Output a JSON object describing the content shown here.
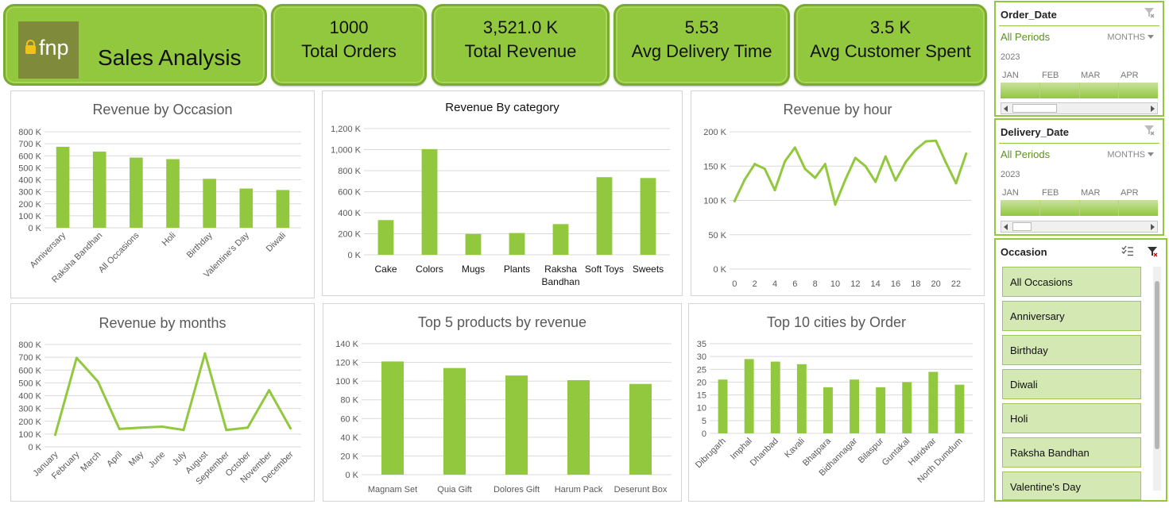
{
  "brand": {
    "logo_text": "fnp",
    "title": "Sales Analysis"
  },
  "kpis": [
    {
      "value": "1000",
      "label": "Total Orders"
    },
    {
      "value": "3,521.0 K",
      "label": "Total Revenue"
    },
    {
      "value": "5.53",
      "label": "Avg Delivery Time"
    },
    {
      "value": "3.5 K",
      "label": "Avg Customer Spent"
    }
  ],
  "colors": {
    "accent": "#92c83e",
    "bar": "#92c83e",
    "grid": "#d9d9d9",
    "axis_text": "#595959"
  },
  "charts": {
    "occasion": {
      "type": "bar",
      "title": "Revenue by Occasion",
      "categories": [
        "Anniversary",
        "Raksha Bandhan",
        "All Occasions",
        "Holi",
        "Birthday",
        "Valentine's Day",
        "Diwali"
      ],
      "values": [
        675,
        635,
        585,
        572,
        408,
        327,
        315
      ],
      "yticks": [
        "0 K",
        "100 K",
        "200 K",
        "300 K",
        "400 K",
        "500 K",
        "600 K",
        "700 K",
        "800 K"
      ],
      "ylim": [
        0,
        800
      ]
    },
    "category": {
      "type": "bar",
      "title": "Revenue By category",
      "categories": [
        "Cake",
        "Colors",
        "Mugs",
        "Plants",
        "Raksha Bandhan",
        "Soft Toys",
        "Sweets"
      ],
      "values": [
        330,
        1005,
        198,
        207,
        292,
        738,
        730
      ],
      "yticks": [
        "0 K",
        "200 K",
        "400 K",
        "600 K",
        "800 K",
        "1,000 K",
        "1,200 K"
      ],
      "ylim": [
        0,
        1200
      ]
    },
    "hour": {
      "type": "line",
      "title": "Revenue by hour",
      "x": [
        0,
        1,
        2,
        3,
        4,
        5,
        6,
        7,
        8,
        9,
        10,
        11,
        12,
        13,
        14,
        15,
        16,
        17,
        18,
        19,
        20,
        21,
        22,
        23
      ],
      "values": [
        99,
        130,
        153,
        146,
        115,
        157,
        177,
        146,
        133,
        153,
        94,
        130,
        162,
        150,
        127,
        164,
        129,
        156,
        174,
        186,
        187,
        155,
        125,
        168
      ],
      "xticks": [
        "0",
        "2",
        "4",
        "6",
        "8",
        "10",
        "12",
        "14",
        "16",
        "18",
        "20",
        "22"
      ],
      "yticks": [
        "0 K",
        "50 K",
        "100 K",
        "150 K",
        "200 K"
      ],
      "ylim": [
        0,
        200
      ]
    },
    "months": {
      "type": "line",
      "title": "Revenue by months",
      "categories": [
        "January",
        "February",
        "March",
        "April",
        "May",
        "June",
        "July",
        "August",
        "September",
        "October",
        "November",
        "December"
      ],
      "values": [
        95,
        695,
        510,
        140,
        150,
        158,
        132,
        730,
        132,
        150,
        443,
        145
      ],
      "yticks": [
        "0 K",
        "100 K",
        "200 K",
        "300 K",
        "400 K",
        "500 K",
        "600 K",
        "700 K",
        "800 K"
      ],
      "ylim": [
        0,
        800
      ]
    },
    "products": {
      "type": "bar",
      "title": "Top 5 products by revenue",
      "categories": [
        "Magnam Set",
        "Quia Gift",
        "Dolores Gift",
        "Harum Pack",
        "Deserunt Box"
      ],
      "values": [
        121,
        114,
        106,
        101,
        97
      ],
      "yticks": [
        "0 K",
        "20 K",
        "40 K",
        "60 K",
        "80 K",
        "100 K",
        "120 K",
        "140 K"
      ],
      "ylim": [
        0,
        140
      ]
    },
    "cities": {
      "type": "bar",
      "title": "Top 10 cities by Order",
      "categories": [
        "Dibrugarh",
        "Imphal",
        "Dhanbad",
        "Kavali",
        "Bhatpara",
        "Bidhannagar",
        "Bilaspur",
        "Guntakal",
        "Haridwar",
        "North Dumdum"
      ],
      "values": [
        21,
        29,
        28,
        27,
        18,
        21,
        18,
        20,
        24,
        19
      ],
      "yticks": [
        "0",
        "5",
        "10",
        "15",
        "20",
        "25",
        "30",
        "35"
      ],
      "ylim": [
        0,
        35
      ]
    }
  },
  "slicers": {
    "order_date": {
      "header": "Order_Date",
      "all": "All Periods",
      "period": "MONTHS",
      "year": "2023",
      "months": [
        "JAN",
        "FEB",
        "MAR",
        "APR"
      ]
    },
    "delivery_date": {
      "header": "Delivery_Date",
      "all": "All Periods",
      "period": "MONTHS",
      "year": "2023",
      "months": [
        "JAN",
        "FEB",
        "MAR",
        "APR"
      ]
    },
    "occasion": {
      "header": "Occasion",
      "items": [
        "All Occasions",
        "Anniversary",
        "Birthday",
        "Diwali",
        "Holi",
        "Raksha Bandhan",
        "Valentine's Day"
      ]
    }
  },
  "icons": {
    "clear_filter": "clear-filter-icon",
    "multi_select": "multi-select-icon"
  }
}
